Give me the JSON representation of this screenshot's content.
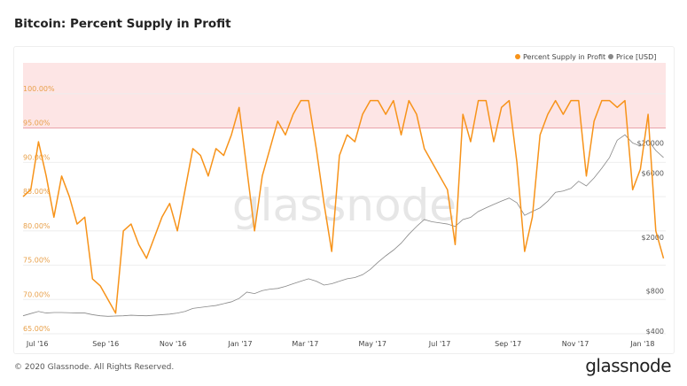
{
  "title": "Bitcoin: Percent Supply in Profit",
  "footer": "© 2020 Glassnode. All Rights Reserved.",
  "logo": "glassnode",
  "watermark": "glassnode",
  "chart_data": {
    "type": "line",
    "title": "Bitcoin: Percent Supply in Profit",
    "legend_position": "top-right",
    "grid": true,
    "highlight_band": {
      "from": 95,
      "to": 105,
      "color": "#fde5e5",
      "line_color": "#e8a0a8"
    },
    "x_ticks": [
      "Jul '16",
      "Sep '16",
      "Nov '16",
      "Jan '17",
      "Mar '17",
      "May '17",
      "Jul '17",
      "Sep '17",
      "Nov '17",
      "Jan '18"
    ],
    "x_tick_dates": [
      "2016-07-01",
      "2016-09-01",
      "2016-11-01",
      "2017-01-01",
      "2017-03-01",
      "2017-05-01",
      "2017-07-01",
      "2017-09-01",
      "2017-11-01",
      "2018-01-01"
    ],
    "xlim": [
      "2016-06-18",
      "2018-01-22"
    ],
    "y_left": {
      "ticks": [
        "65.00%",
        "70.00%",
        "75.00%",
        "80.00%",
        "85.00%",
        "90.00%",
        "95.00%",
        "100.00%"
      ],
      "tick_values": [
        65,
        70,
        75,
        80,
        85,
        90,
        95,
        100
      ],
      "ylim": [
        65,
        104.5
      ]
    },
    "y_right": {
      "scale": "log",
      "ticks": [
        "$400",
        "$800",
        "$2000",
        "$6000",
        "$10000"
      ],
      "tick_values": [
        400,
        800,
        2000,
        6000,
        10000
      ]
    },
    "x": [
      "2016-06-18",
      "2016-06-25",
      "2016-07-02",
      "2016-07-09",
      "2016-07-16",
      "2016-07-23",
      "2016-07-30",
      "2016-08-06",
      "2016-08-13",
      "2016-08-20",
      "2016-08-27",
      "2016-09-03",
      "2016-09-10",
      "2016-09-17",
      "2016-09-24",
      "2016-10-01",
      "2016-10-08",
      "2016-10-15",
      "2016-10-22",
      "2016-10-29",
      "2016-11-05",
      "2016-11-12",
      "2016-11-19",
      "2016-11-26",
      "2016-12-03",
      "2016-12-10",
      "2016-12-17",
      "2016-12-24",
      "2016-12-31",
      "2017-01-07",
      "2017-01-14",
      "2017-01-21",
      "2017-01-28",
      "2017-02-04",
      "2017-02-11",
      "2017-02-18",
      "2017-02-25",
      "2017-03-04",
      "2017-03-11",
      "2017-03-18",
      "2017-03-25",
      "2017-04-01",
      "2017-04-08",
      "2017-04-15",
      "2017-04-22",
      "2017-04-29",
      "2017-05-06",
      "2017-05-13",
      "2017-05-20",
      "2017-05-27",
      "2017-06-03",
      "2017-06-10",
      "2017-06-17",
      "2017-06-24",
      "2017-07-01",
      "2017-07-08",
      "2017-07-15",
      "2017-07-22",
      "2017-07-29",
      "2017-08-05",
      "2017-08-12",
      "2017-08-19",
      "2017-08-26",
      "2017-09-02",
      "2017-09-09",
      "2017-09-16",
      "2017-09-23",
      "2017-09-30",
      "2017-10-07",
      "2017-10-14",
      "2017-10-21",
      "2017-10-28",
      "2017-11-04",
      "2017-11-11",
      "2017-11-18",
      "2017-11-25",
      "2017-12-02",
      "2017-12-09",
      "2017-12-16",
      "2017-12-23",
      "2017-12-30",
      "2018-01-06",
      "2018-01-13",
      "2018-01-20"
    ],
    "series": [
      {
        "name": "Percent Supply in Profit",
        "axis": "left",
        "color": "#f7931a",
        "values": [
          85,
          86,
          93,
          88,
          82,
          88,
          85,
          81,
          82,
          73,
          72,
          70,
          68,
          80,
          81,
          78,
          76,
          79,
          82,
          84,
          80,
          86,
          92,
          91,
          88,
          92,
          91,
          94,
          98,
          89,
          80,
          88,
          92,
          96,
          94,
          97,
          99,
          99,
          92,
          84,
          77,
          91,
          94,
          93,
          97,
          99,
          99,
          97,
          99,
          94,
          99,
          97,
          92,
          90,
          88,
          86,
          78,
          97,
          93,
          99,
          99,
          93,
          98,
          99,
          90,
          77,
          82,
          94,
          97,
          99,
          97,
          99,
          99,
          88,
          96,
          99,
          99,
          98,
          99,
          86,
          89,
          97,
          80,
          76
        ]
      },
      {
        "name": "Price [USD]",
        "axis": "right",
        "color": "#888888",
        "values": [
          520,
          540,
          560,
          545,
          550,
          550,
          548,
          545,
          545,
          530,
          520,
          515,
          518,
          520,
          525,
          522,
          520,
          525,
          530,
          535,
          545,
          560,
          590,
          600,
          610,
          620,
          640,
          660,
          700,
          780,
          760,
          800,
          820,
          830,
          860,
          900,
          940,
          980,
          940,
          880,
          900,
          940,
          980,
          1000,
          1050,
          1150,
          1300,
          1450,
          1600,
          1800,
          2100,
          2400,
          2700,
          2600,
          2550,
          2500,
          2400,
          2700,
          2800,
          3100,
          3300,
          3500,
          3700,
          3900,
          3600,
          2900,
          3100,
          3300,
          3700,
          4300,
          4400,
          4600,
          5200,
          4800,
          5500,
          6500,
          7800,
          10500,
          11500,
          10000,
          9500,
          10500,
          8800,
          7800
        ]
      }
    ]
  }
}
